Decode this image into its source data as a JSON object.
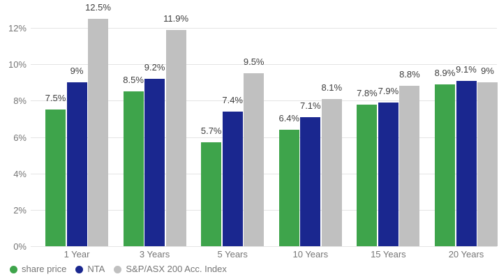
{
  "chart_data": {
    "type": "bar",
    "categories": [
      "1 Year",
      "3 Years",
      "5 Years",
      "10 Years",
      "15 Years",
      "20 Years"
    ],
    "series": [
      {
        "name": "share price",
        "color": "#3EA44B",
        "values": [
          7.5,
          8.5,
          5.7,
          6.4,
          7.8,
          8.9
        ],
        "labels": [
          "7.5%",
          "8.5%",
          "5.7%",
          "6.4%",
          "7.8%",
          "8.9%"
        ]
      },
      {
        "name": "NTA",
        "color": "#1A278F",
        "values": [
          9,
          9.2,
          7.4,
          7.1,
          7.9,
          9.1
        ],
        "labels": [
          "9%",
          "9.2%",
          "7.4%",
          "7.1%",
          "7.9%",
          "9.1%"
        ]
      },
      {
        "name": "S&P/ASX 200 Acc. Index",
        "color": "#C0C0C0",
        "values": [
          12.5,
          11.9,
          9.5,
          8.1,
          8.8,
          9
        ],
        "labels": [
          "12.5%",
          "11.9%",
          "9.5%",
          "8.1%",
          "8.8%",
          "9%"
        ]
      }
    ],
    "ylim": [
      0,
      12
    ],
    "yticks": [
      {
        "value": 0,
        "label": "0%"
      },
      {
        "value": 2,
        "label": "2%"
      },
      {
        "value": 4,
        "label": "4%"
      },
      {
        "value": 6,
        "label": "6%"
      },
      {
        "value": 8,
        "label": "8%"
      },
      {
        "value": 10,
        "label": "10%"
      },
      {
        "value": 12,
        "label": "12%"
      }
    ],
    "grid": true,
    "legend_position": "bottom-left",
    "colors": {
      "grid": "#E4E4E4",
      "axis_text": "#757575",
      "value_label": "#3D3D3D",
      "background": "#FFFFFF"
    }
  }
}
